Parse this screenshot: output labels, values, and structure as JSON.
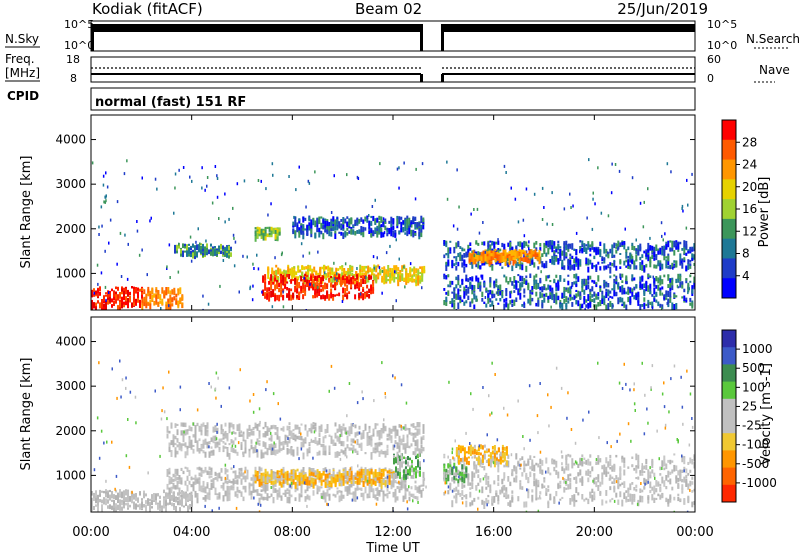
{
  "header": {
    "station": "Kodiak (fitACF)",
    "beam": "Beam 02",
    "date": "25/Jun/2019"
  },
  "status_panels": {
    "nsky_label": "N.Sky",
    "nsky_ticks": [
      "10^5",
      "10^0"
    ],
    "nsearch_label": "N.Search",
    "nsearch_ticks": [
      "10^5",
      "10^0"
    ],
    "freq_label_line1": "Freq.",
    "freq_label_line2": "[MHz]",
    "freq_ticks": [
      "18",
      "8"
    ],
    "nave_label": "Nave",
    "nave_ticks": [
      "60",
      "0"
    ],
    "cpid_label": "CPID",
    "cpid_text": "normal (fast) 151 RF"
  },
  "colorbars": {
    "power": {
      "label": "Power [dB]",
      "ticks": [
        "28",
        "24",
        "20",
        "16",
        "12",
        "8",
        "4"
      ],
      "colors": [
        "#ff0000",
        "#ff5a00",
        "#ff9600",
        "#e6d200",
        "#a0d232",
        "#3c965a",
        "#1e7896",
        "#1e3cc8",
        "#0000ff"
      ]
    },
    "velocity": {
      "label": "Velocity [m s-1]",
      "ticks": [
        "1000",
        "500",
        "100",
        "25",
        "-25",
        "-100",
        "-500",
        "-1000"
      ],
      "colors": [
        "#2d2daa",
        "#3c5ac8",
        "#3c8c50",
        "#5ac83c",
        "#c0c0c0",
        "#c0c0c0",
        "#f0c832",
        "#ff9600",
        "#ff6400",
        "#ff2800"
      ]
    }
  },
  "chart_data": [
    {
      "type": "heatmap",
      "name": "power",
      "ylabel": "Slant Range [km]",
      "xlim_hours": [
        0,
        24
      ],
      "ylim_km": [
        180,
        4550
      ],
      "yticks": [
        "4000",
        "3000",
        "2000",
        "1000"
      ],
      "data_gap_hours": [
        13.3,
        14.0
      ],
      "bands": [
        {
          "t0": 0.0,
          "t1": 2.0,
          "r0": 260,
          "r1": 720,
          "level": "red"
        },
        {
          "t0": 2.0,
          "t1": 3.6,
          "r0": 300,
          "r1": 700,
          "level": "orange"
        },
        {
          "t0": 3.3,
          "t1": 5.6,
          "r0": 1450,
          "r1": 1680,
          "level": "green-blue"
        },
        {
          "t0": 6.5,
          "t1": 7.5,
          "r0": 1850,
          "r1": 2050,
          "level": "green"
        },
        {
          "t0": 7.0,
          "t1": 13.2,
          "r0": 850,
          "r1": 1200,
          "level": "yellow-orange"
        },
        {
          "t0": 6.8,
          "t1": 11.2,
          "r0": 500,
          "r1": 1000,
          "level": "red"
        },
        {
          "t0": 8.0,
          "t1": 13.2,
          "r0": 1900,
          "r1": 2300,
          "level": "blue-green"
        },
        {
          "t0": 14.0,
          "t1": 24.0,
          "r0": 1150,
          "r1": 1750,
          "level": "blue-green"
        },
        {
          "t0": 15.0,
          "t1": 17.8,
          "r0": 1300,
          "r1": 1550,
          "level": "orange"
        },
        {
          "t0": 14.0,
          "t1": 24.0,
          "r0": 300,
          "r1": 1000,
          "level": "blue"
        }
      ]
    },
    {
      "type": "heatmap",
      "name": "velocity",
      "xlabel": "Time UT",
      "ylabel": "Slant Range [km]",
      "xlim_hours": [
        0,
        24
      ],
      "ylim_km": [
        180,
        4550
      ],
      "xticks": [
        "00:00",
        "04:00",
        "08:00",
        "12:00",
        "16:00",
        "20:00",
        "00:00"
      ],
      "yticks": [
        "4000",
        "3000",
        "2000",
        "1000"
      ],
      "data_gap_hours": [
        13.3,
        14.0
      ],
      "bands": [
        {
          "t0": 0.0,
          "t1": 4.0,
          "r0": 280,
          "r1": 700,
          "level": "grey"
        },
        {
          "t0": 3.0,
          "t1": 13.2,
          "r0": 500,
          "r1": 1200,
          "level": "grey"
        },
        {
          "t0": 6.5,
          "t1": 12.0,
          "r0": 850,
          "r1": 1150,
          "level": "orange"
        },
        {
          "t0": 12.0,
          "t1": 13.1,
          "r0": 1000,
          "r1": 1500,
          "level": "green"
        },
        {
          "t0": 3.0,
          "t1": 13.2,
          "r0": 1500,
          "r1": 2200,
          "level": "grey"
        },
        {
          "t0": 14.0,
          "t1": 24.0,
          "r0": 400,
          "r1": 1500,
          "level": "grey"
        },
        {
          "t0": 14.5,
          "t1": 16.5,
          "r0": 1300,
          "r1": 1700,
          "level": "orange"
        },
        {
          "t0": 14.0,
          "t1": 14.9,
          "r0": 900,
          "r1": 1300,
          "level": "green"
        }
      ]
    }
  ]
}
